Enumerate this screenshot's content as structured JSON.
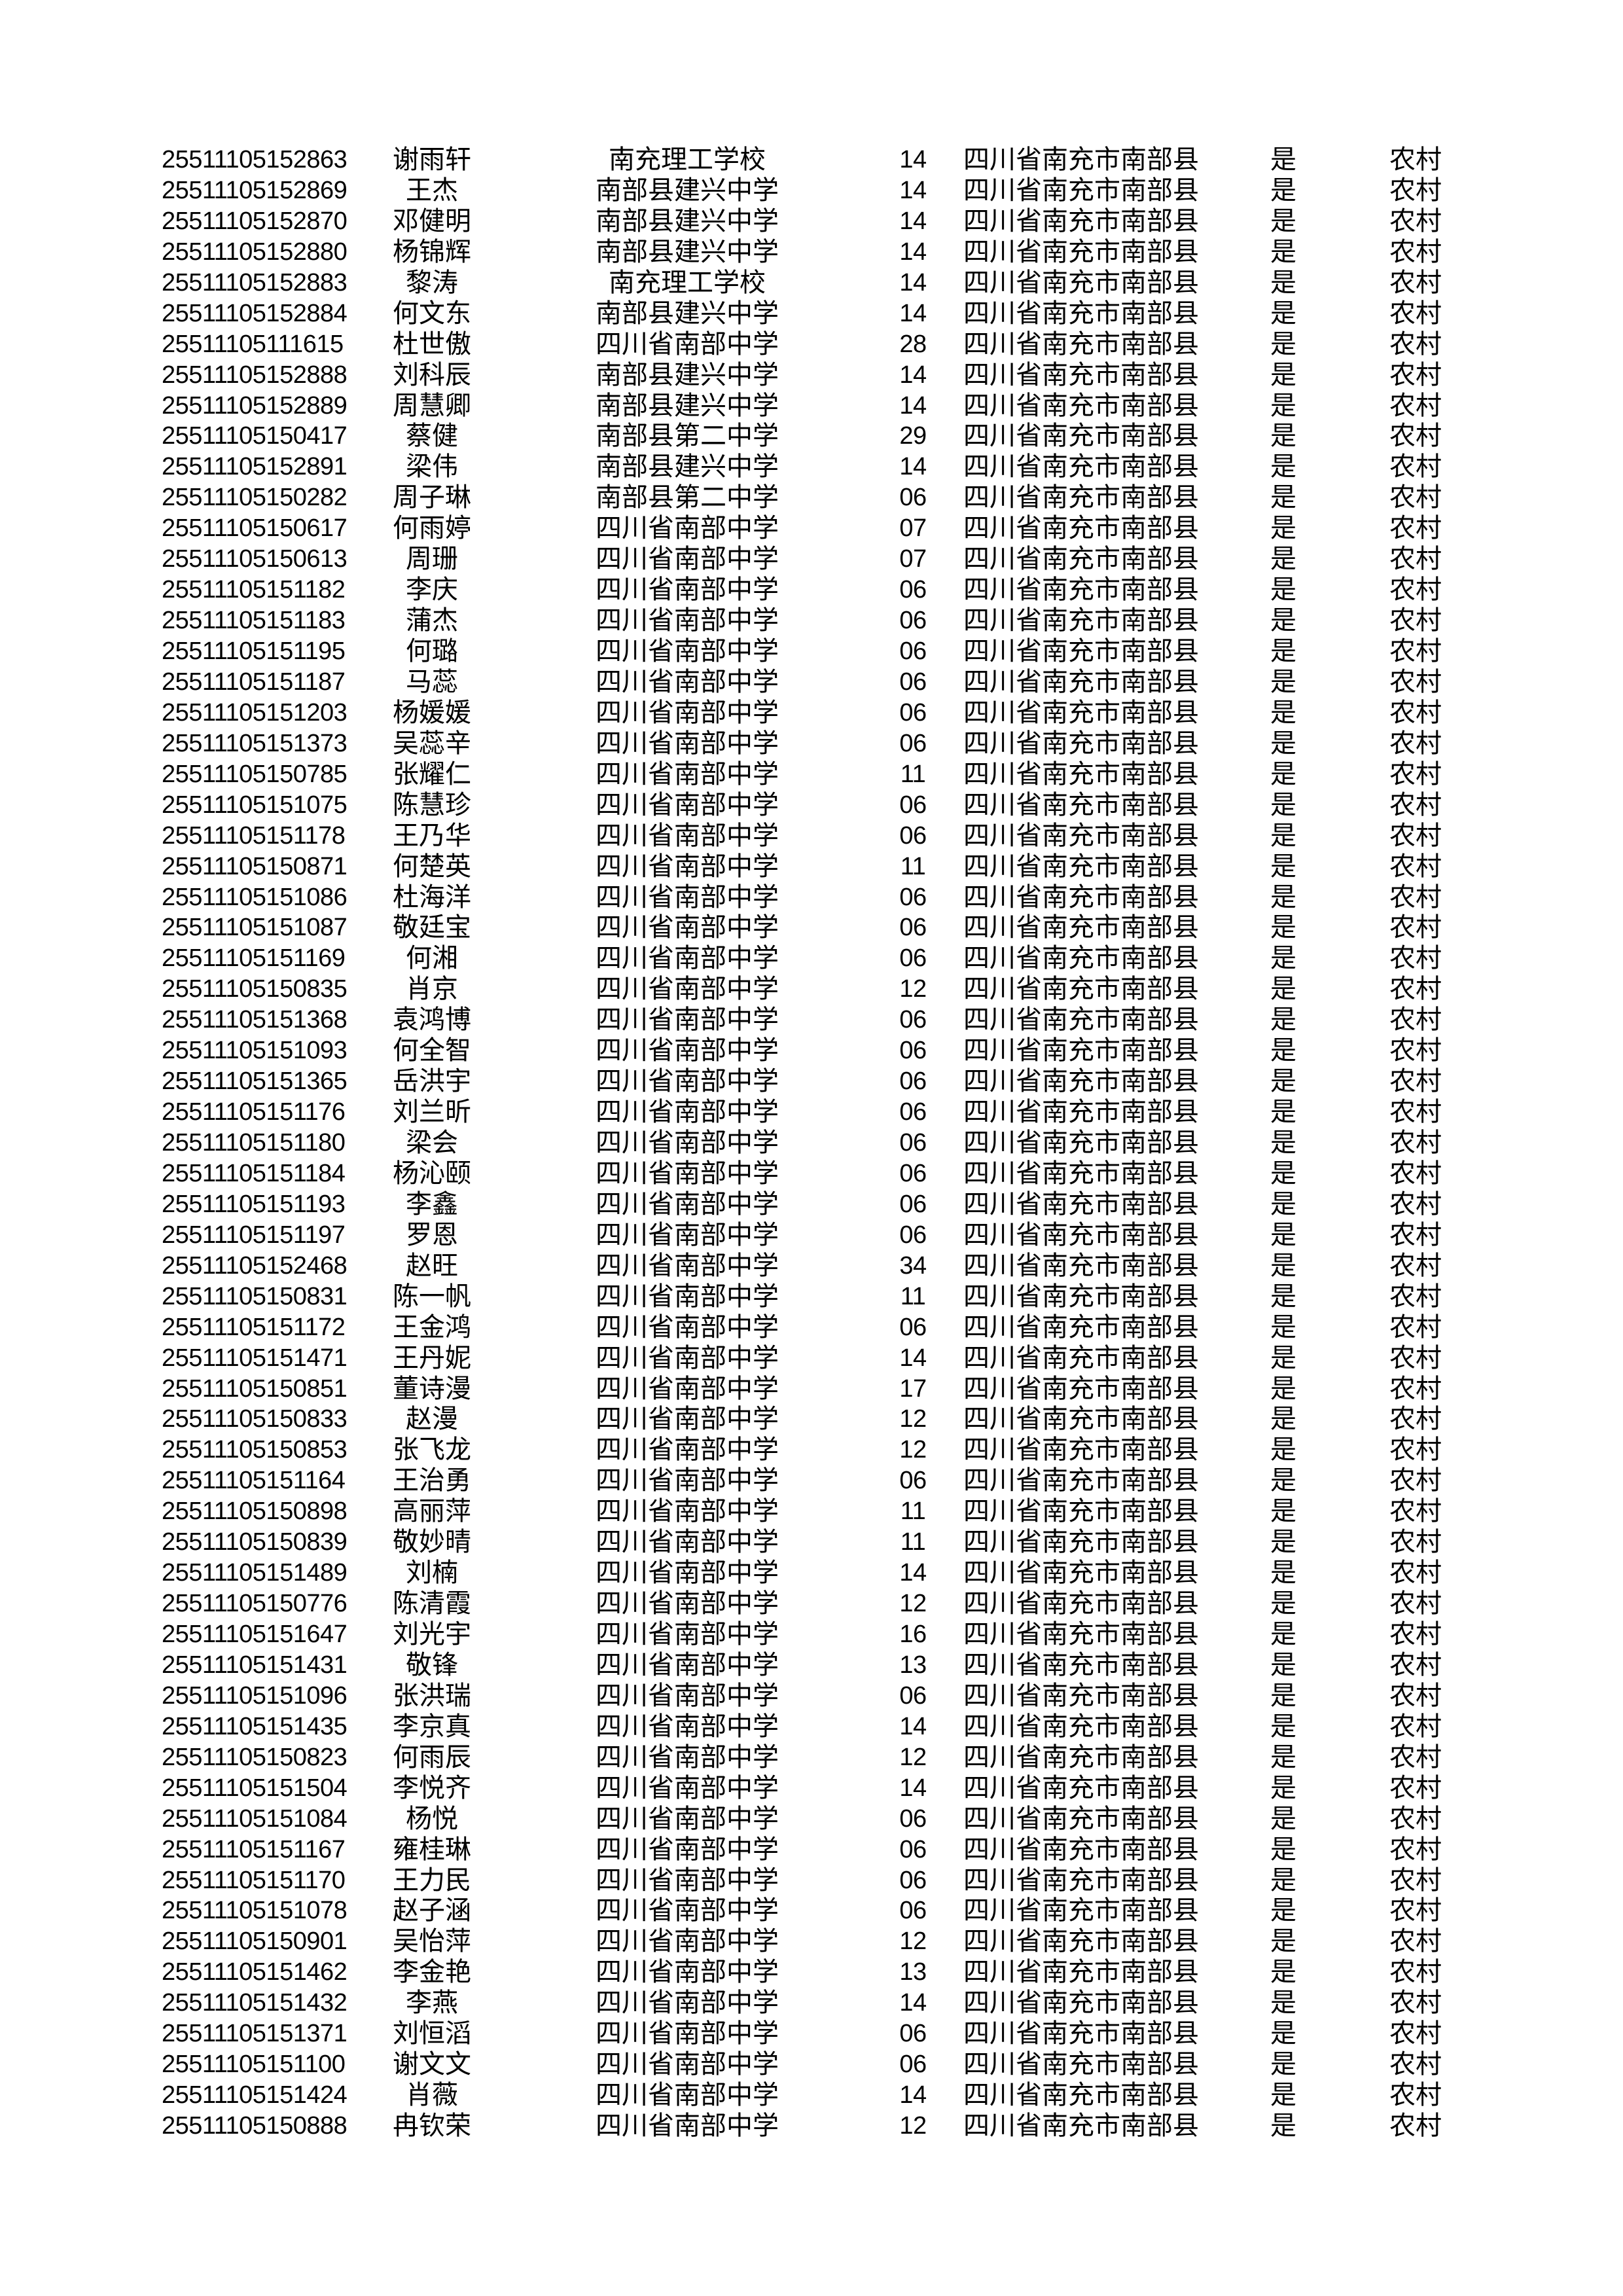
{
  "table": {
    "fields": [
      "exam_id",
      "student_name",
      "school",
      "class_code",
      "region",
      "confirm_flag",
      "residence_type"
    ],
    "rows": [
      [
        "25511105152863",
        "谢雨轩",
        "南充理工学校",
        "14",
        "四川省南充市南部县",
        "是",
        "农村"
      ],
      [
        "25511105152869",
        "王杰",
        "南部县建兴中学",
        "14",
        "四川省南充市南部县",
        "是",
        "农村"
      ],
      [
        "25511105152870",
        "邓健明",
        "南部县建兴中学",
        "14",
        "四川省南充市南部县",
        "是",
        "农村"
      ],
      [
        "25511105152880",
        "杨锦辉",
        "南部县建兴中学",
        "14",
        "四川省南充市南部县",
        "是",
        "农村"
      ],
      [
        "25511105152883",
        "黎涛",
        "南充理工学校",
        "14",
        "四川省南充市南部县",
        "是",
        "农村"
      ],
      [
        "25511105152884",
        "何文东",
        "南部县建兴中学",
        "14",
        "四川省南充市南部县",
        "是",
        "农村"
      ],
      [
        "25511105111615",
        "杜世傲",
        "四川省南部中学",
        "28",
        "四川省南充市南部县",
        "是",
        "农村"
      ],
      [
        "25511105152888",
        "刘科辰",
        "南部县建兴中学",
        "14",
        "四川省南充市南部县",
        "是",
        "农村"
      ],
      [
        "25511105152889",
        "周慧卿",
        "南部县建兴中学",
        "14",
        "四川省南充市南部县",
        "是",
        "农村"
      ],
      [
        "25511105150417",
        "蔡健",
        "南部县第二中学",
        "29",
        "四川省南充市南部县",
        "是",
        "农村"
      ],
      [
        "25511105152891",
        "梁伟",
        "南部县建兴中学",
        "14",
        "四川省南充市南部县",
        "是",
        "农村"
      ],
      [
        "25511105150282",
        "周子琳",
        "南部县第二中学",
        "06",
        "四川省南充市南部县",
        "是",
        "农村"
      ],
      [
        "25511105150617",
        "何雨婷",
        "四川省南部中学",
        "07",
        "四川省南充市南部县",
        "是",
        "农村"
      ],
      [
        "25511105150613",
        "周珊",
        "四川省南部中学",
        "07",
        "四川省南充市南部县",
        "是",
        "农村"
      ],
      [
        "25511105151182",
        "李庆",
        "四川省南部中学",
        "06",
        "四川省南充市南部县",
        "是",
        "农村"
      ],
      [
        "25511105151183",
        "蒲杰",
        "四川省南部中学",
        "06",
        "四川省南充市南部县",
        "是",
        "农村"
      ],
      [
        "25511105151195",
        "何璐",
        "四川省南部中学",
        "06",
        "四川省南充市南部县",
        "是",
        "农村"
      ],
      [
        "25511105151187",
        "马蕊",
        "四川省南部中学",
        "06",
        "四川省南充市南部县",
        "是",
        "农村"
      ],
      [
        "25511105151203",
        "杨媛媛",
        "四川省南部中学",
        "06",
        "四川省南充市南部县",
        "是",
        "农村"
      ],
      [
        "25511105151373",
        "吴蕊辛",
        "四川省南部中学",
        "06",
        "四川省南充市南部县",
        "是",
        "农村"
      ],
      [
        "25511105150785",
        "张耀仁",
        "四川省南部中学",
        "11",
        "四川省南充市南部县",
        "是",
        "农村"
      ],
      [
        "25511105151075",
        "陈慧珍",
        "四川省南部中学",
        "06",
        "四川省南充市南部县",
        "是",
        "农村"
      ],
      [
        "25511105151178",
        "王乃华",
        "四川省南部中学",
        "06",
        "四川省南充市南部县",
        "是",
        "农村"
      ],
      [
        "25511105150871",
        "何楚英",
        "四川省南部中学",
        "11",
        "四川省南充市南部县",
        "是",
        "农村"
      ],
      [
        "25511105151086",
        "杜海洋",
        "四川省南部中学",
        "06",
        "四川省南充市南部县",
        "是",
        "农村"
      ],
      [
        "25511105151087",
        "敬廷宝",
        "四川省南部中学",
        "06",
        "四川省南充市南部县",
        "是",
        "农村"
      ],
      [
        "25511105151169",
        "何湘",
        "四川省南部中学",
        "06",
        "四川省南充市南部县",
        "是",
        "农村"
      ],
      [
        "25511105150835",
        "肖京",
        "四川省南部中学",
        "12",
        "四川省南充市南部县",
        "是",
        "农村"
      ],
      [
        "25511105151368",
        "袁鸿博",
        "四川省南部中学",
        "06",
        "四川省南充市南部县",
        "是",
        "农村"
      ],
      [
        "25511105151093",
        "何全智",
        "四川省南部中学",
        "06",
        "四川省南充市南部县",
        "是",
        "农村"
      ],
      [
        "25511105151365",
        "岳洪宇",
        "四川省南部中学",
        "06",
        "四川省南充市南部县",
        "是",
        "农村"
      ],
      [
        "25511105151176",
        "刘兰昕",
        "四川省南部中学",
        "06",
        "四川省南充市南部县",
        "是",
        "农村"
      ],
      [
        "25511105151180",
        "梁会",
        "四川省南部中学",
        "06",
        "四川省南充市南部县",
        "是",
        "农村"
      ],
      [
        "25511105151184",
        "杨沁颐",
        "四川省南部中学",
        "06",
        "四川省南充市南部县",
        "是",
        "农村"
      ],
      [
        "25511105151193",
        "李鑫",
        "四川省南部中学",
        "06",
        "四川省南充市南部县",
        "是",
        "农村"
      ],
      [
        "25511105151197",
        "罗恩",
        "四川省南部中学",
        "06",
        "四川省南充市南部县",
        "是",
        "农村"
      ],
      [
        "25511105152468",
        "赵旺",
        "四川省南部中学",
        "34",
        "四川省南充市南部县",
        "是",
        "农村"
      ],
      [
        "25511105150831",
        "陈一帆",
        "四川省南部中学",
        "11",
        "四川省南充市南部县",
        "是",
        "农村"
      ],
      [
        "25511105151172",
        "王金鸿",
        "四川省南部中学",
        "06",
        "四川省南充市南部县",
        "是",
        "农村"
      ],
      [
        "25511105151471",
        "王丹妮",
        "四川省南部中学",
        "14",
        "四川省南充市南部县",
        "是",
        "农村"
      ],
      [
        "25511105150851",
        "董诗漫",
        "四川省南部中学",
        "17",
        "四川省南充市南部县",
        "是",
        "农村"
      ],
      [
        "25511105150833",
        "赵漫",
        "四川省南部中学",
        "12",
        "四川省南充市南部县",
        "是",
        "农村"
      ],
      [
        "25511105150853",
        "张飞龙",
        "四川省南部中学",
        "12",
        "四川省南充市南部县",
        "是",
        "农村"
      ],
      [
        "25511105151164",
        "王治勇",
        "四川省南部中学",
        "06",
        "四川省南充市南部县",
        "是",
        "农村"
      ],
      [
        "25511105150898",
        "高丽萍",
        "四川省南部中学",
        "11",
        "四川省南充市南部县",
        "是",
        "农村"
      ],
      [
        "25511105150839",
        "敬妙晴",
        "四川省南部中学",
        "11",
        "四川省南充市南部县",
        "是",
        "农村"
      ],
      [
        "25511105151489",
        "刘楠",
        "四川省南部中学",
        "14",
        "四川省南充市南部县",
        "是",
        "农村"
      ],
      [
        "25511105150776",
        "陈清霞",
        "四川省南部中学",
        "12",
        "四川省南充市南部县",
        "是",
        "农村"
      ],
      [
        "25511105151647",
        "刘光宇",
        "四川省南部中学",
        "16",
        "四川省南充市南部县",
        "是",
        "农村"
      ],
      [
        "25511105151431",
        "敬锋",
        "四川省南部中学",
        "13",
        "四川省南充市南部县",
        "是",
        "农村"
      ],
      [
        "25511105151096",
        "张洪瑞",
        "四川省南部中学",
        "06",
        "四川省南充市南部县",
        "是",
        "农村"
      ],
      [
        "25511105151435",
        "李京真",
        "四川省南部中学",
        "14",
        "四川省南充市南部县",
        "是",
        "农村"
      ],
      [
        "25511105150823",
        "何雨辰",
        "四川省南部中学",
        "12",
        "四川省南充市南部县",
        "是",
        "农村"
      ],
      [
        "25511105151504",
        "李悦齐",
        "四川省南部中学",
        "14",
        "四川省南充市南部县",
        "是",
        "农村"
      ],
      [
        "25511105151084",
        "杨悦",
        "四川省南部中学",
        "06",
        "四川省南充市南部县",
        "是",
        "农村"
      ],
      [
        "25511105151167",
        "雍桂琳",
        "四川省南部中学",
        "06",
        "四川省南充市南部县",
        "是",
        "农村"
      ],
      [
        "25511105151170",
        "王力民",
        "四川省南部中学",
        "06",
        "四川省南充市南部县",
        "是",
        "农村"
      ],
      [
        "25511105151078",
        "赵子涵",
        "四川省南部中学",
        "06",
        "四川省南充市南部县",
        "是",
        "农村"
      ],
      [
        "25511105150901",
        "吴怡萍",
        "四川省南部中学",
        "12",
        "四川省南充市南部县",
        "是",
        "农村"
      ],
      [
        "25511105151462",
        "李金艳",
        "四川省南部中学",
        "13",
        "四川省南充市南部县",
        "是",
        "农村"
      ],
      [
        "25511105151432",
        "李燕",
        "四川省南部中学",
        "14",
        "四川省南充市南部县",
        "是",
        "农村"
      ],
      [
        "25511105151371",
        "刘恒滔",
        "四川省南部中学",
        "06",
        "四川省南充市南部县",
        "是",
        "农村"
      ],
      [
        "25511105151100",
        "谢文文",
        "四川省南部中学",
        "06",
        "四川省南充市南部县",
        "是",
        "农村"
      ],
      [
        "25511105151424",
        "肖薇",
        "四川省南部中学",
        "14",
        "四川省南充市南部县",
        "是",
        "农村"
      ],
      [
        "25511105150888",
        "冉钦荣",
        "四川省南部中学",
        "12",
        "四川省南充市南部县",
        "是",
        "农村"
      ]
    ]
  }
}
